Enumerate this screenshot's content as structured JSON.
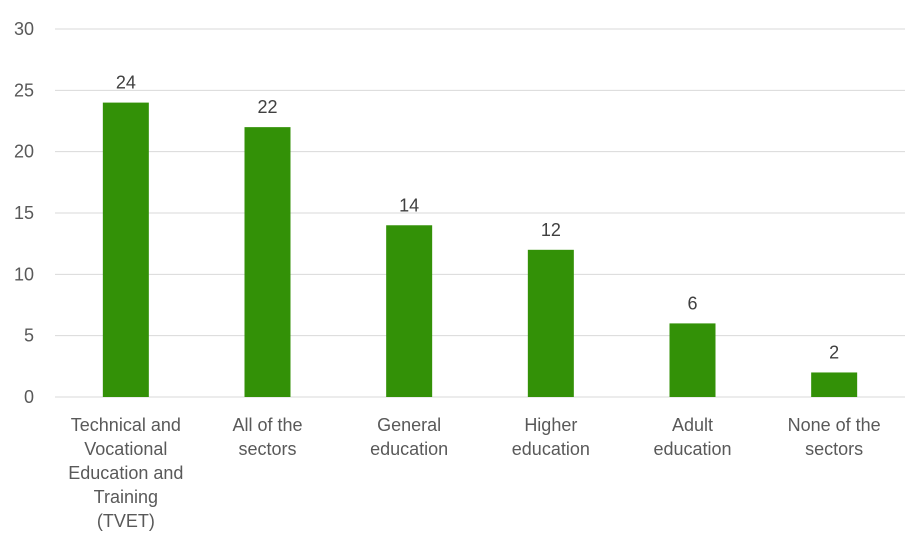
{
  "chart_data": {
    "type": "bar",
    "categories": [
      [
        "Technical and",
        "Vocational",
        "Education and",
        "Training",
        "(TVET)"
      ],
      [
        "All of the",
        "sectors"
      ],
      [
        "General",
        "education"
      ],
      [
        "Higher",
        "education"
      ],
      [
        "Adult",
        "education"
      ],
      [
        "None of the",
        "sectors"
      ]
    ],
    "values": [
      24,
      22,
      14,
      12,
      6,
      2
    ],
    "data_labels": [
      "24",
      "22",
      "14",
      "12",
      "6",
      "2"
    ],
    "yticks": [
      0,
      5,
      10,
      15,
      20,
      25,
      30
    ],
    "ylim": [
      0,
      30
    ],
    "grid": true,
    "legend": "none",
    "bar_color": "#339107"
  }
}
